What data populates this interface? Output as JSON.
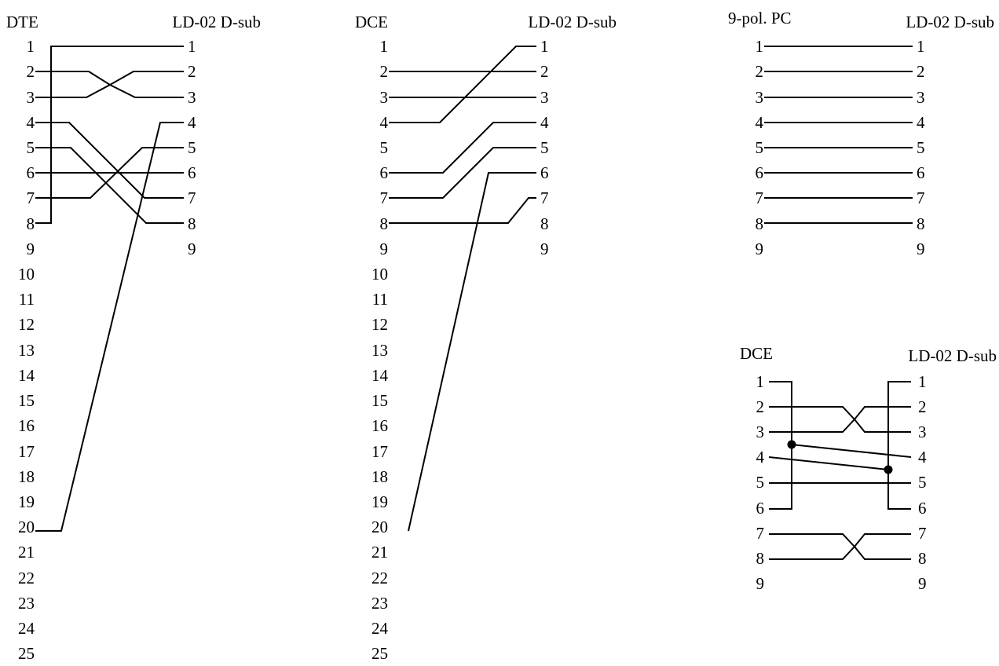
{
  "diagrams": [
    {
      "id": "dte-25",
      "left_header": "DTE",
      "right_header": "LD-02 D-sub",
      "left_pins": [
        "1",
        "2",
        "3",
        "4",
        "5",
        "6",
        "7",
        "8",
        "9",
        "10",
        "11",
        "12",
        "13",
        "14",
        "15",
        "16",
        "17",
        "18",
        "19",
        "20",
        "21",
        "22",
        "23",
        "24",
        "25"
      ],
      "right_pins": [
        "1",
        "2",
        "3",
        "4",
        "5",
        "6",
        "7",
        "8",
        "9"
      ],
      "connections": [
        {
          "from": "1",
          "to": "8",
          "side": "left",
          "kind": "bridge"
        },
        {
          "from": "1",
          "to": "1"
        },
        {
          "from": "2",
          "to": "3"
        },
        {
          "from": "3",
          "to": "2"
        },
        {
          "from": "4",
          "to": "7"
        },
        {
          "from": "5",
          "to": "8"
        },
        {
          "from": "6",
          "to": "6"
        },
        {
          "from": "7",
          "to": "5"
        },
        {
          "from": "20",
          "to": "4"
        }
      ]
    },
    {
      "id": "dce-25",
      "left_header": "DCE",
      "right_header": "LD-02 D-sub",
      "left_pins": [
        "1",
        "2",
        "3",
        "4",
        "5",
        "6",
        "7",
        "8",
        "9",
        "10",
        "11",
        "12",
        "13",
        "14",
        "15",
        "16",
        "17",
        "18",
        "19",
        "20",
        "21",
        "22",
        "23",
        "24",
        "25"
      ],
      "right_pins": [
        "1",
        "2",
        "3",
        "4",
        "5",
        "6",
        "7",
        "8",
        "9"
      ],
      "connections": [
        {
          "from": "2",
          "to": "2"
        },
        {
          "from": "3",
          "to": "3"
        },
        {
          "from": "4",
          "to": "1"
        },
        {
          "from": "6",
          "to": "4"
        },
        {
          "from": "7",
          "to": "5"
        },
        {
          "from": "8",
          "to": "7"
        },
        {
          "from": "20",
          "to": "6"
        }
      ]
    },
    {
      "id": "pc-9",
      "left_header": "9-pol. PC",
      "right_header": "LD-02 D-sub",
      "left_pins": [
        "1",
        "2",
        "3",
        "4",
        "5",
        "6",
        "7",
        "8",
        "9"
      ],
      "right_pins": [
        "1",
        "2",
        "3",
        "4",
        "5",
        "6",
        "7",
        "8",
        "9"
      ],
      "connections": [
        {
          "from": "1",
          "to": "1"
        },
        {
          "from": "2",
          "to": "2"
        },
        {
          "from": "3",
          "to": "3"
        },
        {
          "from": "4",
          "to": "4"
        },
        {
          "from": "5",
          "to": "5"
        },
        {
          "from": "6",
          "to": "6"
        },
        {
          "from": "7",
          "to": "7"
        },
        {
          "from": "8",
          "to": "8"
        }
      ]
    },
    {
      "id": "dce-9",
      "left_header": "DCE",
      "right_header": "LD-02 D-sub",
      "left_pins": [
        "1",
        "2",
        "3",
        "4",
        "5",
        "6",
        "7",
        "8",
        "9"
      ],
      "right_pins": [
        "1",
        "2",
        "3",
        "4",
        "5",
        "6",
        "7",
        "8",
        "9"
      ],
      "connections": [
        {
          "from": "1",
          "to": "6",
          "side": "left",
          "kind": "bridge"
        },
        {
          "from": "1",
          "to": "6",
          "side": "right",
          "kind": "bridge"
        },
        {
          "from": "2",
          "to": "3"
        },
        {
          "from": "3",
          "to": "2"
        },
        {
          "from": "4",
          "to": "5",
          "kind": "junction"
        },
        {
          "from": "4",
          "to": "4",
          "kind": "junction"
        },
        {
          "from": "7",
          "to": "8"
        },
        {
          "from": "8",
          "to": "7"
        }
      ]
    }
  ]
}
